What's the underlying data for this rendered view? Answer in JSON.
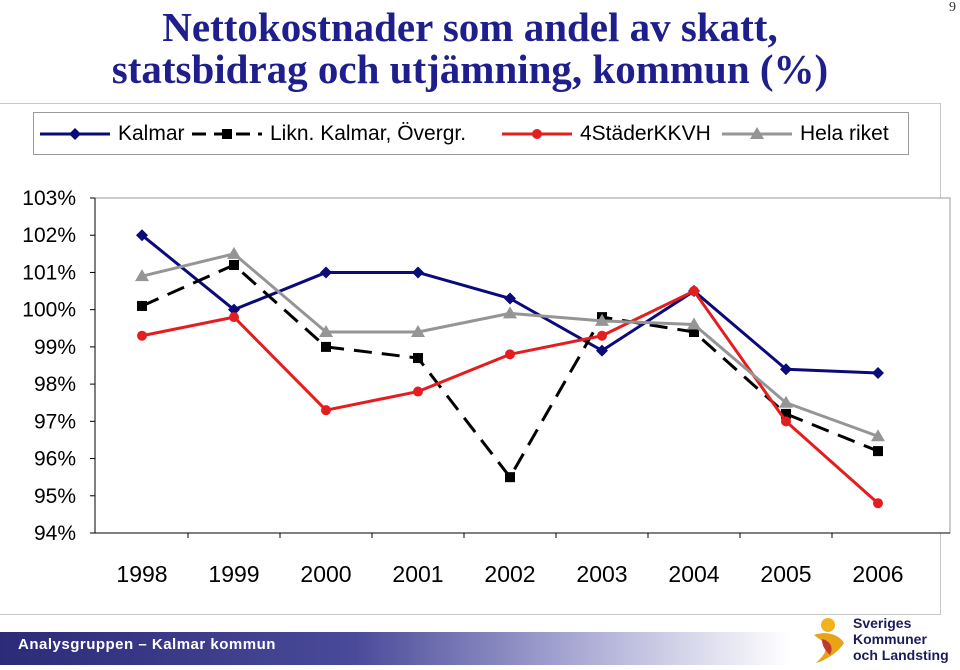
{
  "page_number": "9",
  "chart_data": {
    "type": "line",
    "title_lines": [
      "Nettokostnader som andel av skatt,",
      "statsbidrag och utjämning, kommun (%)"
    ],
    "categories": [
      "1998",
      "1999",
      "2000",
      "2001",
      "2002",
      "2003",
      "2004",
      "2005",
      "2006"
    ],
    "ylim": [
      94,
      103
    ],
    "y_ticks": [
      "103%",
      "102%",
      "101%",
      "100%",
      "99%",
      "98%",
      "97%",
      "96%",
      "95%",
      "94%"
    ],
    "y_tick_values": [
      103,
      102,
      101,
      100,
      99,
      98,
      97,
      96,
      95,
      94
    ],
    "grid": false,
    "legend_position": "top",
    "series": [
      {
        "name": "Kalmar",
        "color": "#0a0a7a",
        "marker": "diamond",
        "dash": "solid",
        "values": [
          102.0,
          100.0,
          101.0,
          101.0,
          100.3,
          98.9,
          100.5,
          98.4,
          98.3
        ]
      },
      {
        "name": "Likn. Kalmar, Övergr.",
        "color": "#000000",
        "marker": "square",
        "dash": "dashed",
        "values": [
          100.1,
          101.2,
          99.0,
          98.7,
          95.5,
          99.8,
          99.4,
          97.2,
          96.2
        ]
      },
      {
        "name": "4StäderKKVH",
        "color": "#e41e1e",
        "marker": "circle",
        "dash": "solid",
        "values": [
          99.3,
          99.8,
          97.3,
          97.8,
          98.8,
          99.3,
          100.5,
          97.0,
          94.8
        ]
      },
      {
        "name": "Hela riket",
        "color": "#959595",
        "marker": "triangle",
        "dash": "solid",
        "values": [
          100.9,
          101.5,
          99.4,
          99.4,
          99.9,
          99.7,
          99.6,
          97.5,
          96.6
        ]
      }
    ]
  },
  "footer": {
    "text": "Analysgruppen – Kalmar kommun",
    "logo_lines": [
      "Sveriges",
      "Kommuner",
      "och Landsting"
    ]
  }
}
